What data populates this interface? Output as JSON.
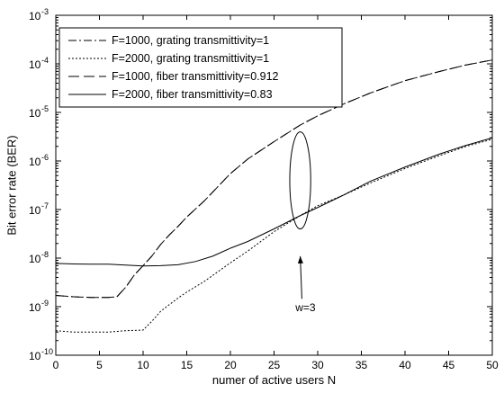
{
  "chart_data": {
    "type": "line",
    "title": "",
    "xlabel": "numer of active users N",
    "ylabel": "Bit error rate (BER)",
    "xlim": [
      0,
      50
    ],
    "ylim_log10": [
      -10,
      -3
    ],
    "y_scale": "log",
    "grid": false,
    "legend_placement": "top-left",
    "x_ticks": [
      "0",
      "5",
      "10",
      "15",
      "20",
      "25",
      "30",
      "35",
      "40",
      "45",
      "50"
    ],
    "y_ticks": [
      {
        "base": "10",
        "exp": "-10"
      },
      {
        "base": "10",
        "exp": "-9"
      },
      {
        "base": "10",
        "exp": "-8"
      },
      {
        "base": "10",
        "exp": "-7"
      },
      {
        "base": "10",
        "exp": "-6"
      },
      {
        "base": "10",
        "exp": "-5"
      },
      {
        "base": "10",
        "exp": "-4"
      },
      {
        "base": "10",
        "exp": "-3"
      }
    ],
    "series": [
      {
        "name": "F=1000, grating transmittivity=1",
        "style": "dashdot",
        "x": [
          0,
          2,
          4,
          6,
          7,
          8,
          9,
          10,
          11,
          12,
          13,
          14,
          15,
          17,
          20,
          22,
          25,
          28,
          30,
          33,
          36,
          40,
          44,
          47,
          50
        ],
        "y": [
          1.7e-09,
          1.6e-09,
          1.55e-09,
          1.55e-09,
          1.6e-09,
          2.5e-09,
          4.5e-09,
          7e-09,
          1.1e-08,
          1.9e-08,
          3e-08,
          4.5e-08,
          7e-08,
          1.5e-07,
          5.5e-07,
          1.1e-06,
          2.5e-06,
          5.5e-06,
          8.5e-06,
          1.5e-05,
          2.5e-05,
          4.5e-05,
          7e-05,
          9.5e-05,
          0.00012
        ]
      },
      {
        "name": "F=2000, grating transmittivity=1",
        "style": "dotted",
        "x": [
          0,
          2,
          4,
          5,
          6,
          8,
          10,
          11,
          12,
          13,
          14,
          15,
          17,
          20,
          22,
          25,
          28,
          30,
          33,
          36,
          40,
          44,
          47,
          50
        ],
        "y": [
          3.2e-10,
          3e-10,
          3e-10,
          3e-10,
          3e-10,
          3.2e-10,
          3.3e-10,
          5e-10,
          8e-10,
          1.1e-09,
          1.5e-09,
          2e-09,
          3.3e-09,
          8e-09,
          1.4e-08,
          3.5e-08,
          7.5e-08,
          1.2e-07,
          2e-07,
          3.5e-07,
          7e-07,
          1.3e-06,
          2e-06,
          2.8e-06
        ]
      },
      {
        "name": "F=1000, fiber transmittivity=0.912",
        "style": "dashed",
        "x": [
          0,
          2,
          4,
          6,
          7,
          8,
          9,
          10,
          11,
          12,
          13,
          14,
          15,
          17,
          20,
          22,
          25,
          28,
          30,
          33,
          36,
          40,
          44,
          47,
          50
        ],
        "y": [
          1.7e-09,
          1.6e-09,
          1.55e-09,
          1.55e-09,
          1.6e-09,
          2.5e-09,
          4.5e-09,
          7e-09,
          1.1e-08,
          1.9e-08,
          3e-08,
          4.5e-08,
          7e-08,
          1.5e-07,
          5.5e-07,
          1.1e-06,
          2.5e-06,
          5.5e-06,
          8.5e-06,
          1.5e-05,
          2.5e-05,
          4.5e-05,
          7e-05,
          9.5e-05,
          0.00012
        ]
      },
      {
        "name": "F=2000, fiber transmittivity=0.83",
        "style": "solid",
        "x": [
          0,
          2,
          4,
          6,
          8,
          10,
          12,
          14,
          16,
          18,
          20,
          22,
          25,
          28,
          30,
          33,
          36,
          40,
          44,
          47,
          50
        ],
        "y": [
          7.8e-09,
          7.6e-09,
          7.5e-09,
          7.5e-09,
          7.2e-09,
          6.9e-09,
          7e-09,
          7.3e-09,
          8.5e-09,
          1.1e-08,
          1.6e-08,
          2.2e-08,
          4e-08,
          7.5e-08,
          1.1e-07,
          2e-07,
          3.8e-07,
          7.5e-07,
          1.4e-06,
          2.1e-06,
          3e-06
        ]
      }
    ],
    "annotations": [
      {
        "text": "w=3",
        "ellipse_center": [
          28,
          1.3e-07
        ],
        "ellipse_span_log10": [
          -7.4,
          -5.4
        ],
        "ellipse_halfwidth_x": 1.2,
        "arrow_tip": [
          28,
          1.3e-08
        ],
        "label_at": [
          28.6,
          8e-10
        ]
      }
    ]
  }
}
